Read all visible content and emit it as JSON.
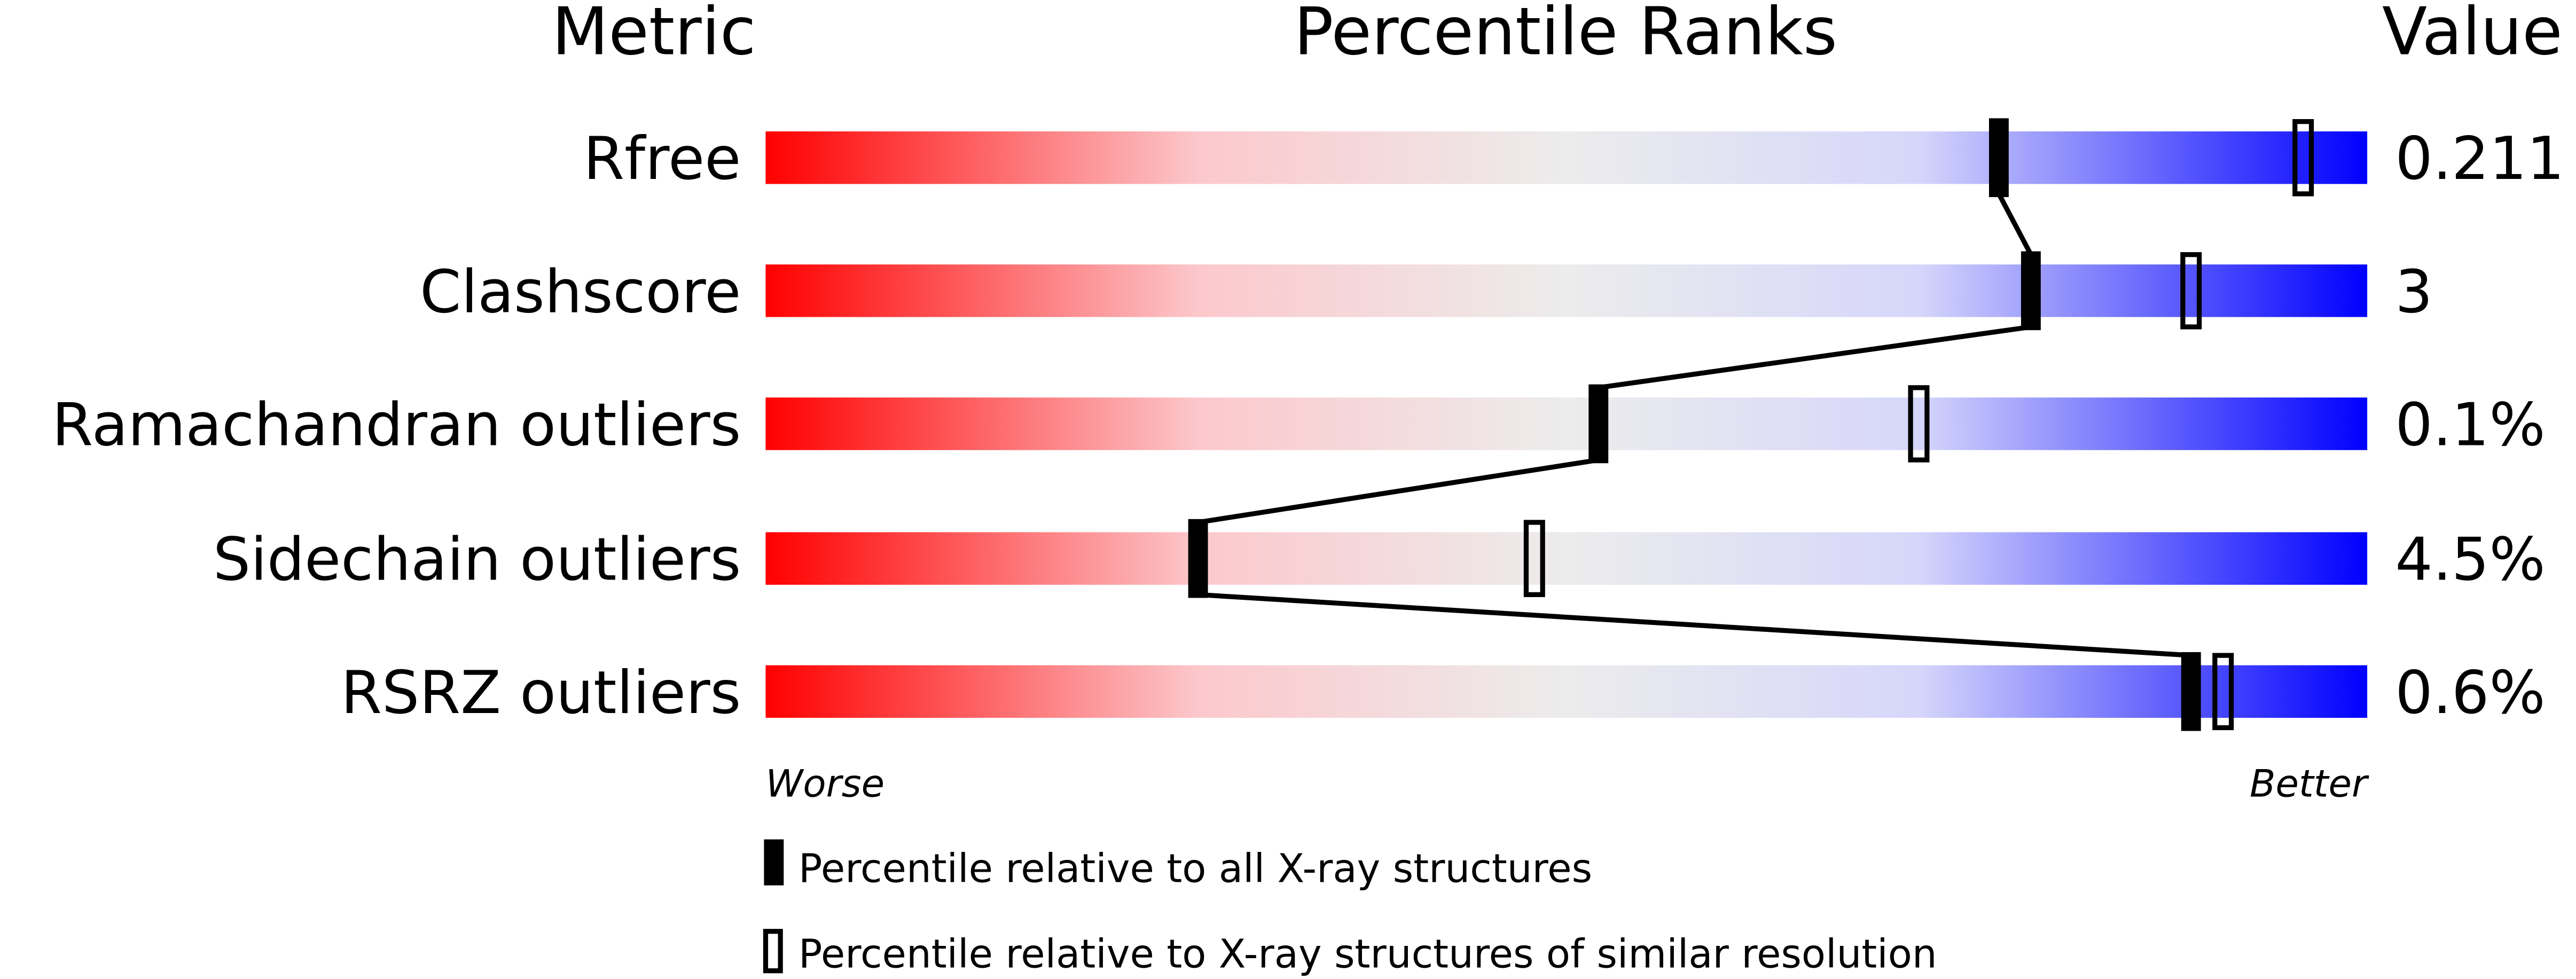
{
  "chart_data": {
    "type": "percentile-bar",
    "headers": {
      "metric": "Metric",
      "ranks": "Percentile Ranks",
      "value": "Value"
    },
    "xlim": [
      0,
      100
    ],
    "axis_labels": {
      "left": "Worse",
      "right": "Better"
    },
    "gradient_colors": {
      "worse": "#ff0000",
      "middle": "#eeeeee",
      "better": "#0000ff"
    },
    "rows": [
      {
        "metric": "Rfree",
        "value": "0.211",
        "percentile_all": 77,
        "percentile_similar": 96
      },
      {
        "metric": "Clashscore",
        "value": "3",
        "percentile_all": 79,
        "percentile_similar": 89
      },
      {
        "metric": "Ramachandran outliers",
        "value": "0.1%",
        "percentile_all": 52,
        "percentile_similar": 72
      },
      {
        "metric": "Sidechain outliers",
        "value": "4.5%",
        "percentile_all": 27,
        "percentile_similar": 48
      },
      {
        "metric": "RSRZ outliers",
        "value": "0.6%",
        "percentile_all": 89,
        "percentile_similar": 91
      }
    ],
    "legend": [
      {
        "marker": "filled",
        "label": "Percentile relative to all X-ray structures"
      },
      {
        "marker": "open",
        "label": "Percentile relative to X-ray structures of similar resolution"
      }
    ]
  }
}
